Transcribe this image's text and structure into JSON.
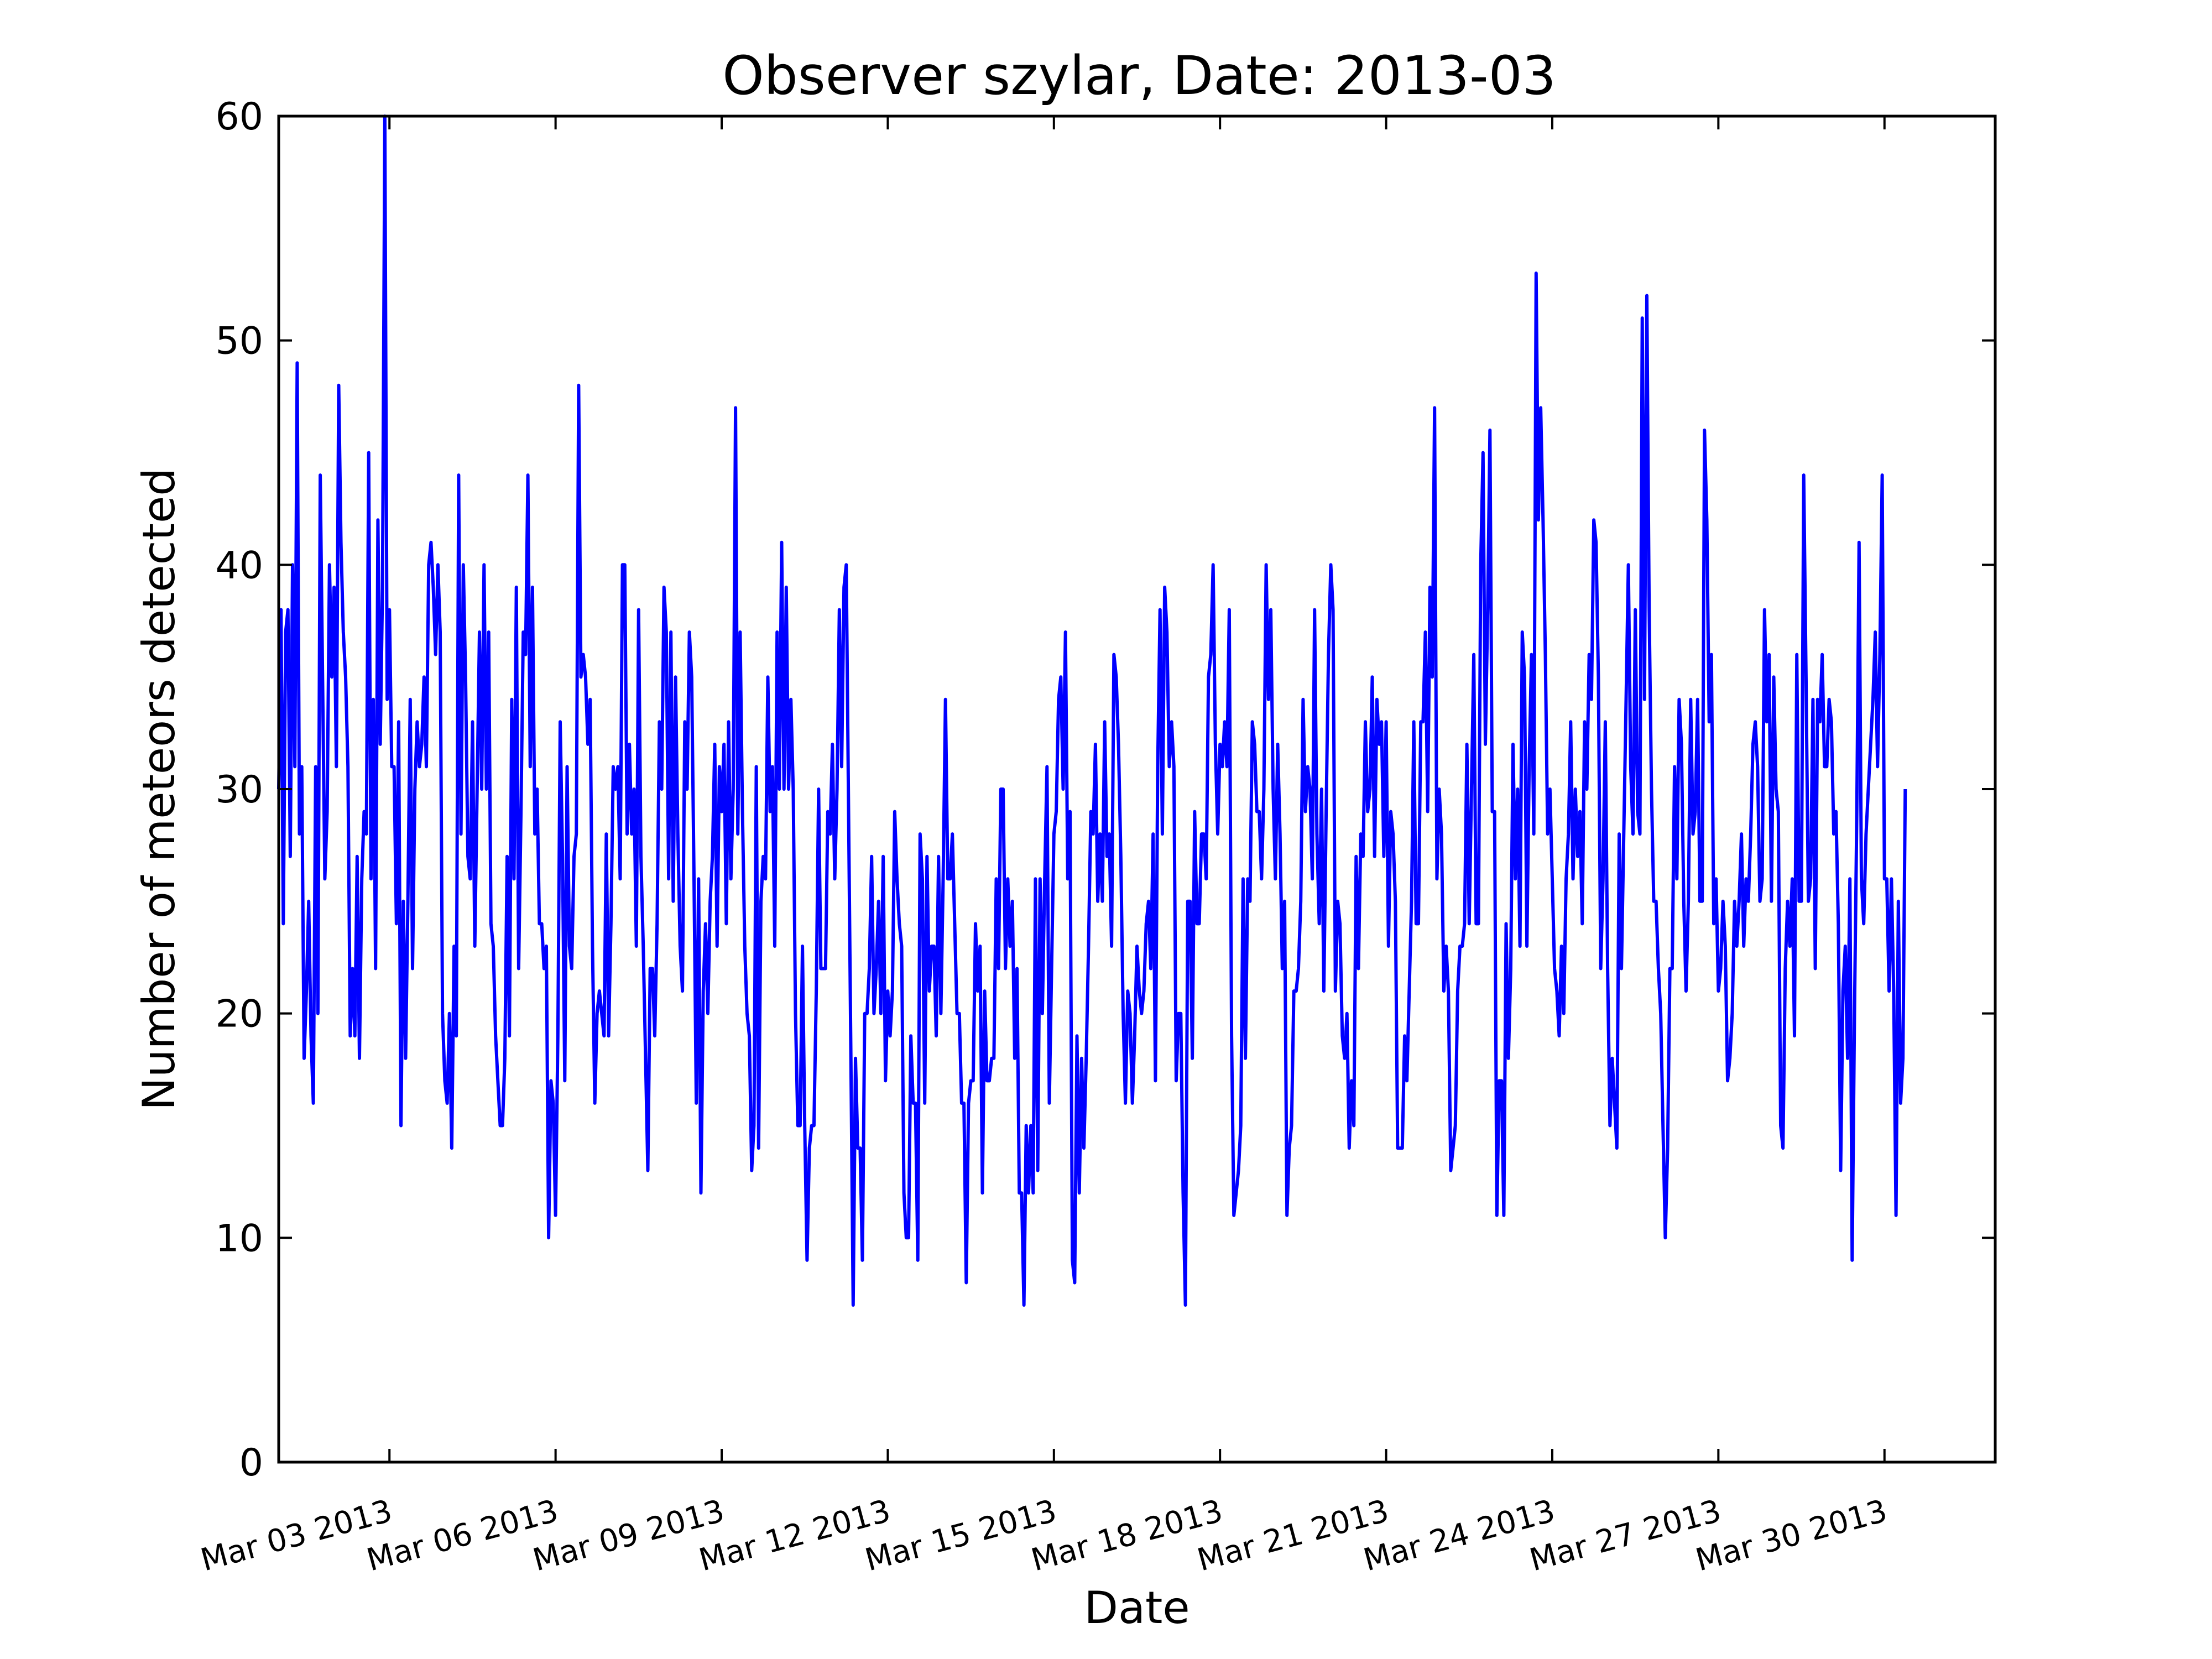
{
  "chart_data": {
    "type": "line",
    "title": "Observer szylar, Date: 2013-03",
    "xlabel": "Date",
    "ylabel": "Number of meteors detected",
    "xlim": [
      "2013-03-01T00:00",
      "2013-04-01T00:00"
    ],
    "ylim": [
      0,
      60
    ],
    "grid": false,
    "legend": "none",
    "line_color": "#0000ff",
    "yticks": [
      0,
      10,
      20,
      30,
      40,
      50,
      60
    ],
    "xticks": [
      {
        "date": "2013-03-03",
        "label": "Mar 03 2013"
      },
      {
        "date": "2013-03-06",
        "label": "Mar 06 2013"
      },
      {
        "date": "2013-03-09",
        "label": "Mar 09 2013"
      },
      {
        "date": "2013-03-12",
        "label": "Mar 12 2013"
      },
      {
        "date": "2013-03-15",
        "label": "Mar 15 2013"
      },
      {
        "date": "2013-03-18",
        "label": "Mar 18 2013"
      },
      {
        "date": "2013-03-21",
        "label": "Mar 21 2013"
      },
      {
        "date": "2013-03-24",
        "label": "Mar 24 2013"
      },
      {
        "date": "2013-03-27",
        "label": "Mar 27 2013"
      },
      {
        "date": "2013-03-30",
        "label": "Mar 30 2013"
      }
    ],
    "series": [
      {
        "x_start": "2013-03-01T00:00",
        "x_step_hours": 1,
        "values": [
          30,
          38,
          24,
          37,
          38,
          27,
          40,
          31,
          49,
          28,
          31,
          18,
          21,
          25,
          19,
          16,
          31,
          20,
          44,
          35,
          26,
          29,
          40,
          35,
          39,
          31,
          48,
          41,
          37,
          35,
          31,
          19,
          22,
          19,
          27,
          18,
          26,
          29,
          28,
          45,
          26,
          34,
          22,
          42,
          32,
          39,
          60,
          34,
          38,
          31,
          31,
          24,
          33,
          15,
          25,
          18,
          25,
          34,
          22,
          30,
          33,
          31,
          32,
          35,
          31,
          40,
          41,
          39,
          36,
          40,
          37,
          20,
          17,
          16,
          20,
          14,
          23,
          19,
          44,
          28,
          40,
          35,
          27,
          26,
          33,
          23,
          30,
          37,
          30,
          40,
          30,
          37,
          24,
          23,
          19,
          17,
          15,
          15,
          18,
          27,
          19,
          34,
          26,
          39,
          22,
          29,
          37,
          36,
          44,
          31,
          39,
          28,
          30,
          24,
          24,
          22,
          23,
          10,
          17,
          16,
          11,
          19,
          33,
          27,
          17,
          31,
          23,
          22,
          27,
          28,
          48,
          35,
          36,
          35,
          32,
          34,
          23,
          16,
          20,
          21,
          20,
          19,
          28,
          19,
          24,
          31,
          30,
          31,
          26,
          40,
          40,
          28,
          32,
          28,
          30,
          23,
          38,
          27,
          23,
          18,
          13,
          22,
          22,
          19,
          24,
          33,
          30,
          39,
          37,
          26,
          37,
          25,
          35,
          28,
          23,
          21,
          33,
          30,
          37,
          35,
          26,
          16,
          26,
          12,
          21,
          24,
          20,
          25,
          27,
          32,
          23,
          31,
          29,
          32,
          24,
          33,
          26,
          30,
          47,
          28,
          37,
          29,
          23,
          20,
          19,
          13,
          15,
          31,
          14,
          25,
          27,
          26,
          35,
          29,
          31,
          23,
          37,
          30,
          41,
          30,
          39,
          30,
          34,
          30,
          20,
          15,
          15,
          23,
          15,
          9,
          14,
          15,
          15,
          21,
          30,
          22,
          22,
          22,
          29,
          28,
          32,
          26,
          30,
          38,
          31,
          39,
          40,
          29,
          18,
          7,
          18,
          14,
          14,
          9,
          20,
          20,
          22,
          27,
          20,
          22,
          25,
          20,
          27,
          17,
          21,
          19,
          21,
          29,
          26,
          24,
          23,
          12,
          10,
          10,
          19,
          16,
          16,
          9,
          28,
          26,
          16,
          27,
          21,
          23,
          23,
          19,
          27,
          20,
          26,
          34,
          26,
          26,
          28,
          24,
          20,
          20,
          16,
          16,
          8,
          16,
          17,
          17,
          24,
          21,
          23,
          12,
          21,
          17,
          17,
          18,
          18,
          26,
          22,
          30,
          30,
          22,
          26,
          23,
          25,
          18,
          22,
          12,
          12,
          7,
          15,
          12,
          15,
          12,
          26,
          13,
          26,
          20,
          26,
          31,
          16,
          22,
          28,
          29,
          34,
          35,
          30,
          37,
          26,
          29,
          9,
          8,
          19,
          12,
          18,
          14,
          18,
          23,
          29,
          28,
          32,
          25,
          28,
          25,
          33,
          27,
          28,
          23,
          36,
          35,
          32,
          27,
          20,
          16,
          21,
          20,
          16,
          19,
          23,
          21,
          20,
          21,
          24,
          25,
          22,
          28,
          17,
          31,
          38,
          28,
          39,
          37,
          31,
          33,
          31,
          17,
          20,
          20,
          12,
          7,
          25,
          25,
          18,
          29,
          24,
          24,
          28,
          28,
          26,
          35,
          36,
          40,
          32,
          28,
          32,
          31,
          33,
          31,
          38,
          19,
          11,
          12,
          13,
          15,
          26,
          18,
          26,
          25,
          33,
          32,
          29,
          29,
          26,
          30,
          40,
          34,
          38,
          30,
          26,
          32,
          28,
          22,
          25,
          11,
          14,
          15,
          21,
          21,
          22,
          25,
          34,
          29,
          31,
          30,
          26,
          38,
          28,
          24,
          30,
          21,
          29,
          36,
          40,
          38,
          21,
          25,
          24,
          19,
          18,
          20,
          14,
          17,
          15,
          27,
          22,
          28,
          27,
          33,
          29,
          30,
          35,
          27,
          34,
          32,
          33,
          27,
          33,
          23,
          29,
          28,
          25,
          14,
          14,
          14,
          19,
          17,
          21,
          25,
          33,
          24,
          24,
          33,
          33,
          37,
          29,
          39,
          35,
          47,
          26,
          30,
          28,
          21,
          23,
          21,
          13,
          14,
          15,
          21,
          23,
          23,
          24,
          32,
          24,
          30,
          36,
          24,
          24,
          40,
          45,
          32,
          38,
          46,
          29,
          29,
          11,
          17,
          17,
          11,
          24,
          18,
          22,
          32,
          26,
          30,
          23,
          37,
          35,
          23,
          31,
          36,
          28,
          53,
          42,
          47,
          42,
          36,
          28,
          30,
          26,
          22,
          21,
          19,
          23,
          20,
          26,
          28,
          33,
          26,
          30,
          27,
          29,
          24,
          33,
          30,
          36,
          34,
          42,
          41,
          35,
          22,
          26,
          33,
          22,
          15,
          18,
          16,
          14,
          28,
          22,
          28,
          34,
          40,
          31,
          28,
          38,
          29,
          28,
          51,
          34,
          52,
          38,
          30,
          25,
          25,
          22,
          20,
          15,
          10,
          14,
          22,
          22,
          31,
          26,
          34,
          32,
          25,
          21,
          25,
          34,
          28,
          29,
          34,
          25,
          25,
          46,
          42,
          33,
          36,
          24,
          26,
          21,
          22,
          25,
          23,
          17,
          18,
          20,
          25,
          23,
          25,
          28,
          23,
          26,
          25,
          28,
          32,
          33,
          31,
          25,
          26,
          38,
          33,
          36,
          25,
          35,
          30,
          29,
          15,
          14,
          22,
          25,
          23,
          26,
          19,
          36,
          25,
          25,
          44,
          35,
          25,
          26,
          34,
          22,
          34,
          33,
          36,
          31,
          31,
          34,
          33,
          28,
          29,
          24,
          13,
          21,
          23,
          18,
          26,
          9,
          20,
          29,
          41,
          26,
          24,
          28,
          30,
          32,
          34,
          37,
          31,
          36,
          44,
          26,
          26,
          21,
          26,
          21,
          11,
          25,
          16,
          18,
          30
        ]
      }
    ]
  }
}
